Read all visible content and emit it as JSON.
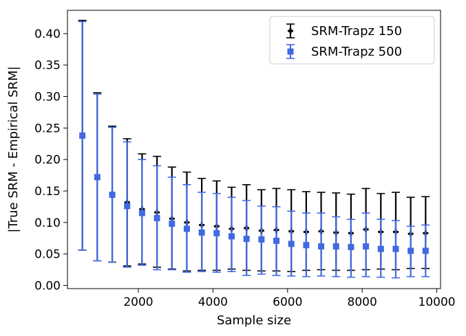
{
  "chart_data": {
    "type": "scatter",
    "title": "",
    "xlabel": "Sample size",
    "ylabel": "|True SRM - Empirical SRM|",
    "xlim": [
      100,
      10100
    ],
    "ylim": [
      -0.005,
      0.437
    ],
    "xticks": [
      2000,
      4000,
      6000,
      8000,
      10000
    ],
    "xtick_labels": [
      "2000",
      "4000",
      "6000",
      "8000",
      "10000"
    ],
    "yticks": [
      0.0,
      0.05,
      0.1,
      0.15,
      0.2,
      0.25,
      0.3,
      0.35,
      0.4
    ],
    "ytick_labels": [
      "0.00",
      "0.05",
      "0.10",
      "0.15",
      "0.20",
      "0.25",
      "0.30",
      "0.35",
      "0.40"
    ],
    "grid": false,
    "legend_position": "top-right",
    "series": [
      {
        "name": "SRM-Trapz 150",
        "color": "#000000",
        "marker": "plus",
        "x": [
          500,
          900,
          1300,
          1700,
          2100,
          2500,
          2900,
          3300,
          3700,
          4100,
          4500,
          4900,
          5300,
          5700,
          6100,
          6500,
          6900,
          7300,
          7700,
          8100,
          8500,
          8900,
          9300,
          9700
        ],
        "y": [
          0.238,
          0.172,
          0.145,
          0.132,
          0.121,
          0.116,
          0.106,
          0.1,
          0.096,
          0.094,
          0.09,
          0.091,
          0.087,
          0.088,
          0.086,
          0.085,
          0.086,
          0.084,
          0.083,
          0.089,
          0.085,
          0.085,
          0.082,
          0.083
        ],
        "err_low": [
          0.056,
          0.039,
          0.037,
          0.031,
          0.034,
          0.029,
          0.026,
          0.023,
          0.024,
          0.024,
          0.026,
          0.024,
          0.023,
          0.023,
          0.022,
          0.024,
          0.025,
          0.024,
          0.024,
          0.025,
          0.026,
          0.025,
          0.027,
          0.027
        ],
        "err_high": [
          0.421,
          0.306,
          0.253,
          0.233,
          0.209,
          0.205,
          0.188,
          0.18,
          0.17,
          0.166,
          0.156,
          0.16,
          0.152,
          0.154,
          0.152,
          0.149,
          0.148,
          0.147,
          0.145,
          0.154,
          0.146,
          0.148,
          0.14,
          0.141
        ]
      },
      {
        "name": "SRM-Trapz 500",
        "color": "#4169e1",
        "marker": "square",
        "x": [
          500,
          900,
          1300,
          1700,
          2100,
          2500,
          2900,
          3300,
          3700,
          4100,
          4500,
          4900,
          5300,
          5700,
          6100,
          6500,
          6900,
          7300,
          7700,
          8100,
          8500,
          8900,
          9300,
          9700
        ],
        "y": [
          0.238,
          0.172,
          0.144,
          0.126,
          0.115,
          0.107,
          0.098,
          0.09,
          0.084,
          0.083,
          0.078,
          0.074,
          0.073,
          0.071,
          0.066,
          0.064,
          0.062,
          0.062,
          0.061,
          0.062,
          0.058,
          0.058,
          0.055,
          0.055
        ],
        "err_low": [
          0.056,
          0.039,
          0.037,
          0.029,
          0.032,
          0.025,
          0.025,
          0.021,
          0.022,
          0.021,
          0.022,
          0.016,
          0.018,
          0.016,
          0.015,
          0.014,
          0.015,
          0.014,
          0.013,
          0.014,
          0.013,
          0.012,
          0.014,
          0.014
        ],
        "err_high": [
          0.419,
          0.304,
          0.251,
          0.228,
          0.2,
          0.19,
          0.172,
          0.16,
          0.148,
          0.146,
          0.14,
          0.135,
          0.126,
          0.125,
          0.118,
          0.115,
          0.115,
          0.109,
          0.105,
          0.115,
          0.105,
          0.103,
          0.094,
          0.096
        ]
      }
    ]
  }
}
